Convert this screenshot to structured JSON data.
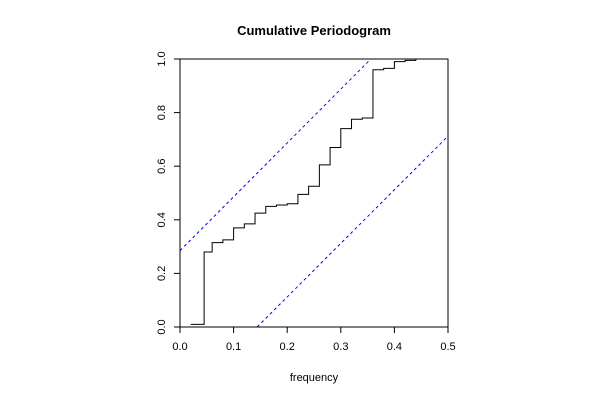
{
  "chart_data": {
    "type": "line",
    "title": "Cumulative Periodogram",
    "xlabel": "frequency",
    "ylabel": "",
    "xlim": [
      0,
      0.5
    ],
    "ylim": [
      0,
      1
    ],
    "x_ticks": [
      "0.0",
      "0.1",
      "0.2",
      "0.3",
      "0.4",
      "0.5"
    ],
    "y_ticks": [
      "0.0",
      "0.2",
      "0.4",
      "0.6",
      "0.8",
      "1.0"
    ],
    "grid": false,
    "series": [
      {
        "style": "step",
        "color": "#000000",
        "x": [
          0.02,
          0.045,
          0.06,
          0.08,
          0.1,
          0.12,
          0.14,
          0.16,
          0.18,
          0.2,
          0.22,
          0.24,
          0.26,
          0.28,
          0.3,
          0.32,
          0.34,
          0.36,
          0.38,
          0.4,
          0.42,
          0.44,
          0.46
        ],
        "y": [
          0.01,
          0.28,
          0.315,
          0.325,
          0.37,
          0.385,
          0.425,
          0.45,
          0.455,
          0.46,
          0.495,
          0.525,
          0.605,
          0.67,
          0.74,
          0.775,
          0.78,
          0.96,
          0.965,
          0.99,
          0.995,
          1.0,
          1.0
        ]
      }
    ],
    "confidence_bounds": {
      "color": "#0000ff",
      "style": "dashed",
      "upper": {
        "x": [
          0.0,
          0.356
        ],
        "y": [
          0.285,
          1.0
        ]
      },
      "lower": {
        "x": [
          0.144,
          0.5
        ],
        "y": [
          0.0,
          0.712
        ]
      }
    }
  }
}
